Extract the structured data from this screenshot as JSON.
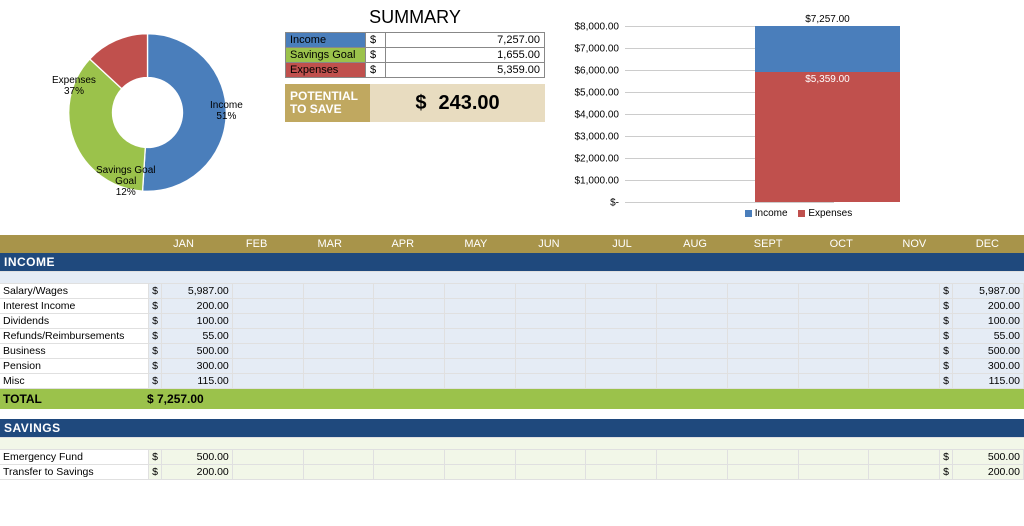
{
  "donut": {
    "type": "pie",
    "slices": [
      {
        "label": "Income",
        "pct": "51%",
        "value": 51,
        "color": "#4a7ebb"
      },
      {
        "label": "Savings Goal",
        "pct": "12%",
        "value": 12,
        "color": "#9bc24b"
      },
      {
        "label": "Expenses",
        "pct": "37%",
        "value": 37,
        "color": "#c0504d"
      }
    ],
    "inner_radius": 0.45,
    "outer_radius": 1.0,
    "border_color": "#ffffff"
  },
  "summary": {
    "title": "SUMMARY",
    "rows": [
      {
        "label": "Income",
        "currency": "$",
        "amount": "7,257.00",
        "bg": "#4a7ebb"
      },
      {
        "label": "Savings Goal",
        "currency": "$",
        "amount": "1,655.00",
        "bg": "#9bc24b"
      },
      {
        "label": "Expenses",
        "currency": "$",
        "amount": "5,359.00",
        "bg": "#c0504d"
      }
    ],
    "potential": {
      "label": "POTENTIAL TO SAVE",
      "currency": "$",
      "amount": "243.00"
    }
  },
  "barchart": {
    "type": "stacked-bar",
    "ylim": [
      0,
      8000
    ],
    "ytick_step": 1000,
    "yticks": [
      "$-",
      "$1,000.00",
      "$2,000.00",
      "$3,000.00",
      "$4,000.00",
      "$5,000.00",
      "$6,000.00",
      "$7,000.00",
      "$8,000.00"
    ],
    "top_label": "$7,257.00",
    "mid_label": "$5,359.00",
    "segments": [
      {
        "name": "Expenses",
        "value": 5359,
        "color": "#c0504d"
      },
      {
        "name": "Income",
        "value": 1898,
        "color": "#4a7ebb"
      }
    ],
    "total": 7257,
    "legend": [
      {
        "label": "Income",
        "color": "#4a7ebb"
      },
      {
        "label": "Expenses",
        "color": "#c0504d"
      }
    ],
    "grid_color": "#cccccc",
    "background_color": "#ffffff"
  },
  "months": [
    "JAN",
    "FEB",
    "MAR",
    "APR",
    "MAY",
    "JUN",
    "JUL",
    "AUG",
    "SEPT",
    "OCT",
    "NOV",
    "DEC"
  ],
  "income": {
    "header": "INCOME",
    "rows": [
      {
        "label": "Salary/Wages",
        "jan": "5,987.00",
        "total": "5,987.00"
      },
      {
        "label": "Interest Income",
        "jan": "200.00",
        "total": "200.00"
      },
      {
        "label": "Dividends",
        "jan": "100.00",
        "total": "100.00"
      },
      {
        "label": "Refunds/Reimbursements",
        "jan": "55.00",
        "total": "55.00"
      },
      {
        "label": "Business",
        "jan": "500.00",
        "total": "500.00"
      },
      {
        "label": "Pension",
        "jan": "300.00",
        "total": "300.00"
      },
      {
        "label": "Misc",
        "jan": "115.00",
        "total": "115.00"
      }
    ],
    "total_label": "TOTAL",
    "total_value": "$ 7,257.00"
  },
  "savings": {
    "header": "SAVINGS",
    "rows": [
      {
        "label": "Emergency Fund",
        "jan": "500.00",
        "total": "500.00"
      },
      {
        "label": "Transfer to Savings",
        "jan": "200.00",
        "total": "200.00"
      }
    ]
  },
  "colors": {
    "section_header": "#1f497d",
    "total_row": "#9bc24b",
    "month_row": "#a8944a",
    "income_body": "#e5ecf5",
    "savings_body": "#f2f7e8"
  }
}
